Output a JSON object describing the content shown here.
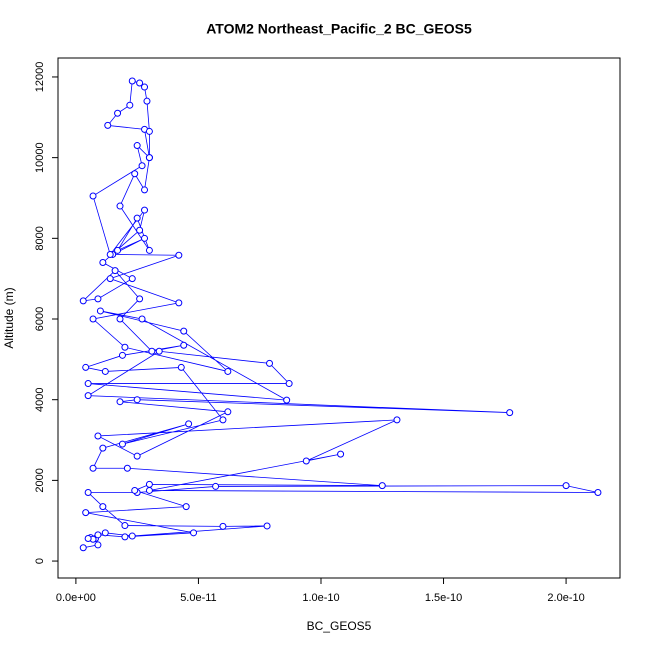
{
  "chart_data": {
    "type": "line",
    "title": "ATOM2 Northeast_Pacific_2 BC_GEOS5",
    "x_label": "BC_GEOS5",
    "y_label": "Altitude (m)",
    "color": "#0000ff",
    "xlim": [
      -7.3e-12,
      2.22e-10
    ],
    "ylim": [
      -420,
      12470
    ],
    "xticks": [
      {
        "value": 0,
        "label": "0.0e+00"
      },
      {
        "value": 5e-11,
        "label": "5.0e-11"
      },
      {
        "value": 1e-10,
        "label": "1.0e-10"
      },
      {
        "value": 1.5e-10,
        "label": "1.5e-10"
      },
      {
        "value": 2e-10,
        "label": "2.0e-10"
      }
    ],
    "yticks": [
      0,
      2000,
      4000,
      6000,
      8000,
      10000,
      12000
    ],
    "x": [
      3e-12,
      9e-12,
      8e-12,
      6e-12,
      1.2e-11,
      2.3e-11,
      7.8e-11,
      6e-11,
      2e-11,
      1.1e-11,
      5e-12,
      2.5e-11,
      5.7e-11,
      2e-10,
      2.13e-10,
      3e-11,
      1.08e-10,
      9.4e-11,
      1.31e-10,
      9e-12,
      2.5e-11,
      6.2e-11,
      1.8e-11,
      2.5e-11,
      1.77e-10,
      5e-12,
      3.4e-11,
      7.9e-11,
      8.7e-11,
      5e-12,
      8.6e-11,
      2.7e-11,
      1e-11,
      4.4e-11,
      6.2e-11,
      2e-11,
      7e-12,
      4.2e-11,
      1.4e-11,
      4.2e-11,
      1.5e-11,
      2.8e-11,
      1.7e-11,
      2.5e-11,
      3e-11,
      1.8e-11,
      2.4e-11,
      2.8e-11,
      3e-11,
      2.8e-11,
      1.3e-11,
      1.7e-11,
      2.2e-11,
      2.3e-11,
      2.6e-11,
      2.8e-11,
      2.9e-11,
      3e-11,
      3e-11,
      2.5e-11,
      2.7e-11,
      7e-12,
      1.4e-11,
      2.8e-11,
      2.6e-11,
      1.1e-11,
      2.3e-11,
      9e-12,
      3e-12,
      1.6e-11,
      2.6e-11,
      1.8e-11,
      3.1e-11,
      4.4e-11,
      1.9e-11,
      4e-12,
      1.2e-11,
      4.3e-11,
      6e-11,
      1.9e-11,
      4.6e-11,
      1.1e-11,
      7e-12,
      2.1e-11,
      1.25e-10,
      3e-11,
      2.4e-11,
      4.5e-11,
      4e-12,
      4.8e-11,
      2e-11,
      9e-12,
      7e-12,
      5e-12
    ],
    "values": [
      330,
      400,
      560,
      580,
      700,
      620,
      870,
      860,
      880,
      1350,
      1700,
      1700,
      1850,
      1870,
      1700,
      1750,
      2650,
      2480,
      3500,
      3100,
      2600,
      3700,
      3950,
      4000,
      3680,
      4100,
      5200,
      4900,
      4400,
      4400,
      3990,
      6000,
      6200,
      5700,
      4700,
      5300,
      6000,
      6400,
      7000,
      7580,
      7600,
      8000,
      7700,
      8500,
      7700,
      8800,
      9600,
      9200,
      10000,
      10700,
      10800,
      11100,
      11300,
      11900,
      11850,
      11750,
      11400,
      10650,
      10000,
      10300,
      9800,
      9050,
      7600,
      8700,
      8200,
      7400,
      7000,
      6500,
      6450,
      7200,
      6500,
      6000,
      5200,
      5350,
      5100,
      4800,
      4700,
      4800,
      3500,
      2900,
      3400,
      2800,
      2300,
      2300,
      1870,
      1900,
      1750,
      1350,
      1200,
      700,
      600,
      650,
      540,
      560
    ]
  }
}
